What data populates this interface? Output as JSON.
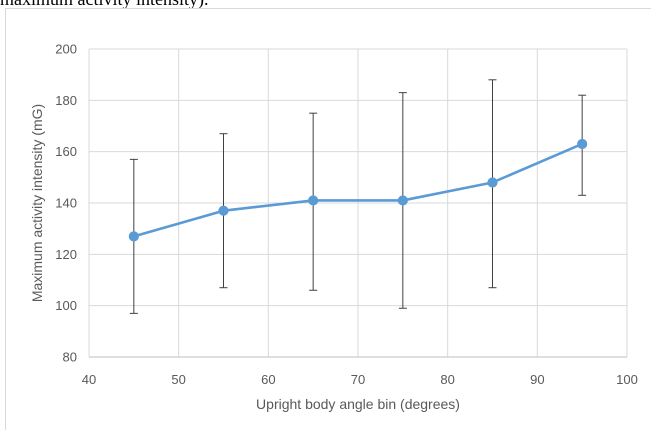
{
  "caption": "maximum activity intensity).",
  "chart_data": {
    "type": "line",
    "title": "",
    "xlabel": "Upright body angle bin (degrees)",
    "ylabel": "Maximum activity intensity (mG)",
    "xlim": [
      40,
      100
    ],
    "ylim": [
      80,
      200
    ],
    "x_ticks": [
      40,
      50,
      60,
      70,
      80,
      90,
      100
    ],
    "y_ticks": [
      80,
      100,
      120,
      140,
      160,
      180,
      200
    ],
    "grid": true,
    "series": [
      {
        "color": "#5b9bd5",
        "points": [
          {
            "x": 45,
            "y": 127,
            "err_low": 97,
            "err_high": 157
          },
          {
            "x": 55,
            "y": 137,
            "err_low": 107,
            "err_high": 167
          },
          {
            "x": 65,
            "y": 141,
            "err_low": 106,
            "err_high": 175
          },
          {
            "x": 75,
            "y": 141,
            "err_low": 99,
            "err_high": 183
          },
          {
            "x": 85,
            "y": 148,
            "err_low": 107,
            "err_high": 188
          },
          {
            "x": 95,
            "y": 163,
            "err_low": 143,
            "err_high": 182
          }
        ]
      }
    ]
  }
}
